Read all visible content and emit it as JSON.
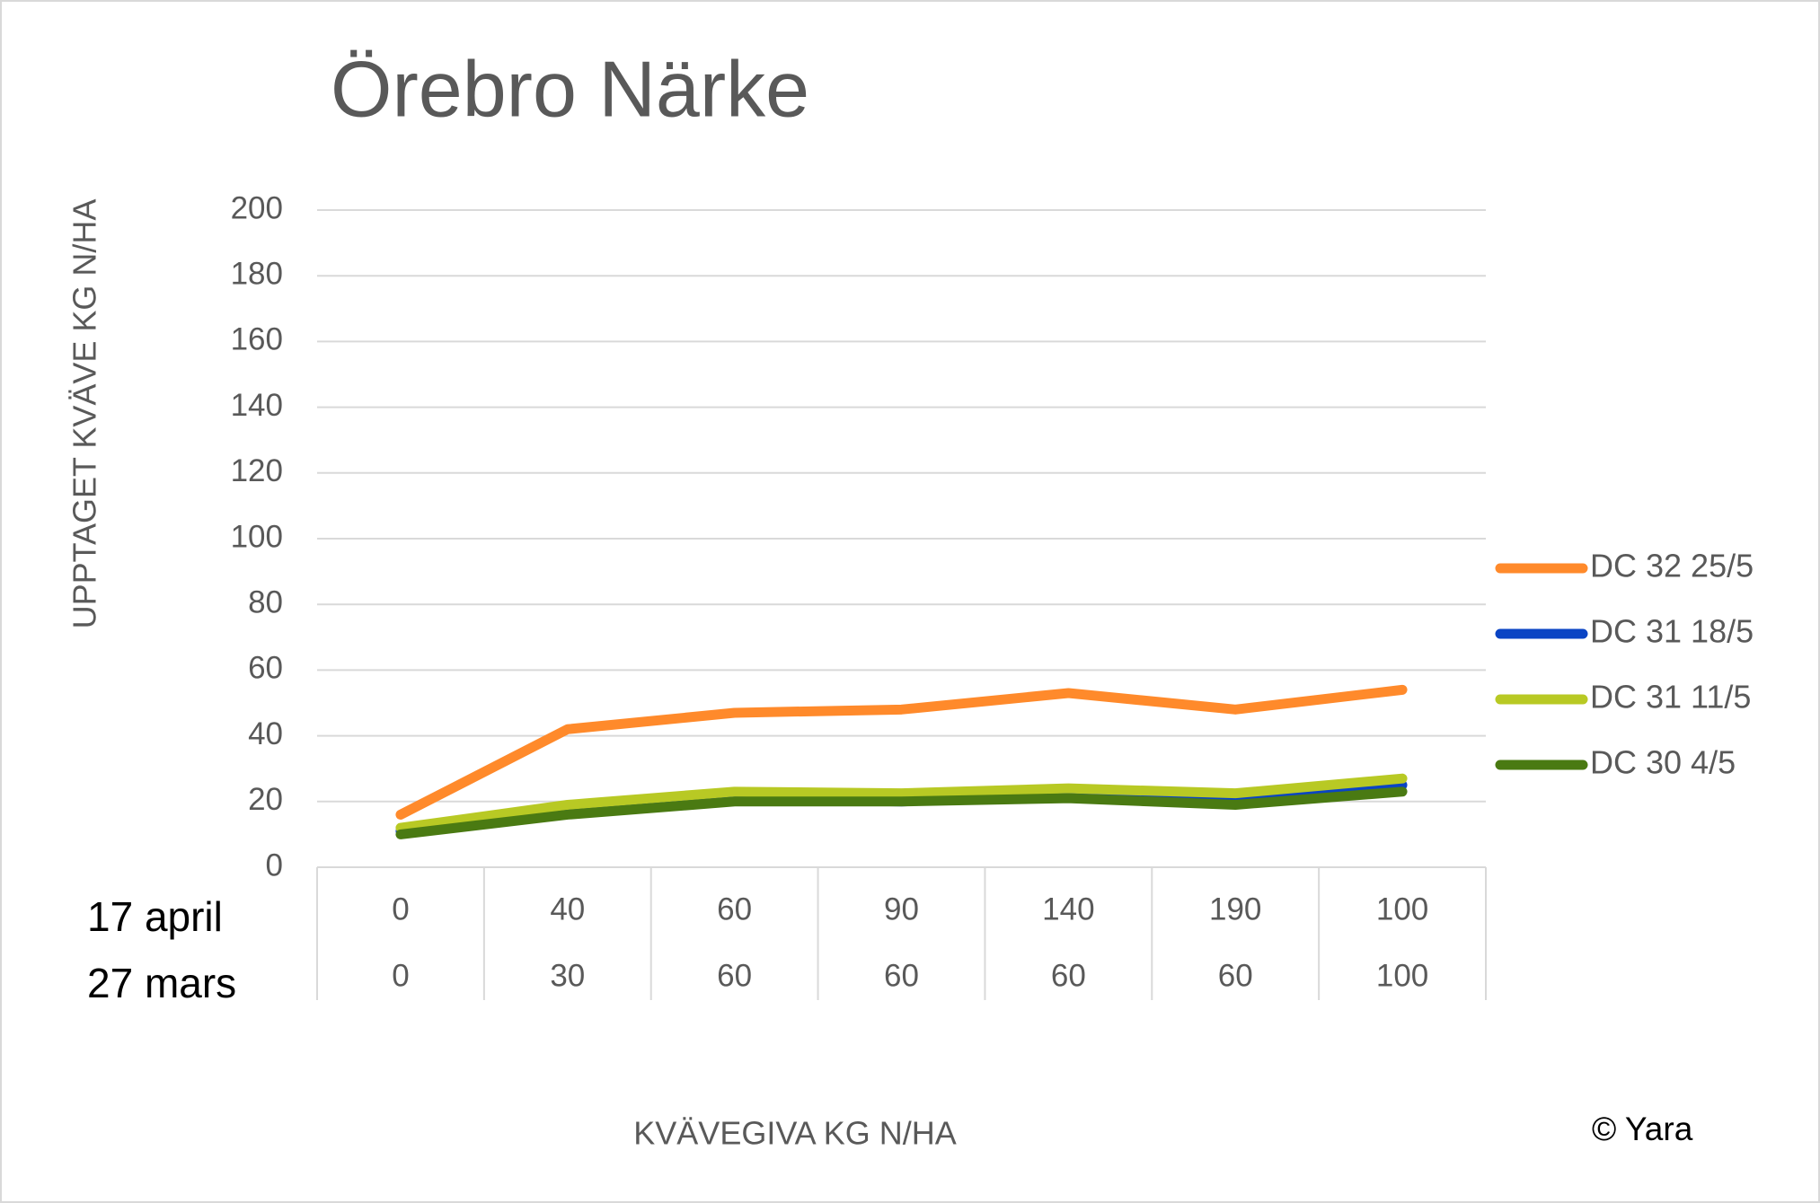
{
  "chart_data": {
    "type": "line",
    "title": "Örebro Närke",
    "y_label": "UPPTAGET KVÄVE KG N/HA",
    "x_label": "KVÄVEGIVA  KG N/HA",
    "category_levels": [
      {
        "label": "17 april",
        "values": [
          0,
          40,
          60,
          90,
          140,
          190,
          100
        ]
      },
      {
        "label": "27 mars",
        "values": [
          0,
          30,
          60,
          60,
          60,
          60,
          100
        ]
      }
    ],
    "series": [
      {
        "name": "DC 32 25/5",
        "color": "#ff8a2b",
        "values": [
          16,
          42,
          47,
          48,
          53,
          48,
          54
        ]
      },
      {
        "name": "DC 31 18/5",
        "color": "#0a44c4",
        "values": [
          11,
          17,
          21,
          20,
          22,
          20,
          25
        ]
      },
      {
        "name": "DC 31 11/5",
        "color": "#b8c924",
        "values": [
          12,
          19,
          23,
          22.5,
          24,
          22.5,
          27
        ]
      },
      {
        "name": "DC 30 4/5",
        "color": "#4a7a12",
        "values": [
          10,
          16,
          20,
          20,
          21,
          19,
          23
        ]
      }
    ],
    "ylim": [
      0,
      200
    ],
    "yticks": [
      0,
      20,
      40,
      60,
      80,
      100,
      120,
      140,
      160,
      180,
      200
    ],
    "grid": true,
    "legend": "right",
    "copyright": "© Yara"
  }
}
